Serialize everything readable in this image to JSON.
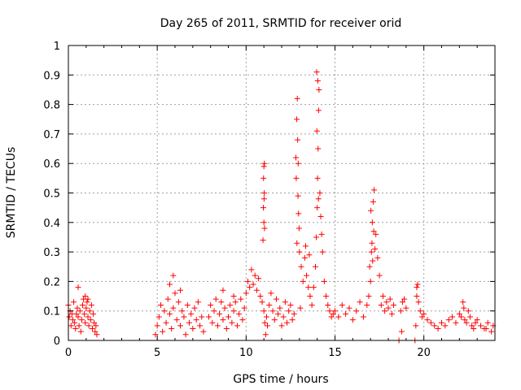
{
  "chart_data": {
    "type": "scatter",
    "title": "Day 265 of 2011, SRMTID for receiver orid",
    "xlabel": "GPS time / hours",
    "ylabel": "SRMTID / TECUs",
    "xlim": [
      0,
      24
    ],
    "ylim": [
      0,
      1
    ],
    "xticks": [
      0,
      5,
      10,
      15,
      20
    ],
    "yticks": [
      0,
      0.1,
      0.2,
      0.3,
      0.4,
      0.5,
      0.6,
      0.7,
      0.8,
      0.9,
      1
    ],
    "xtick_labels": [
      "0",
      "5",
      "10",
      "15",
      "20"
    ],
    "ytick_labels": [
      "0",
      "0.1",
      "0.2",
      "0.3",
      "0.4",
      "0.5",
      "0.6",
      "0.7",
      "0.8",
      "0.9",
      "1"
    ],
    "grid": true,
    "marker": "+",
    "color": "#ff0000",
    "series": [
      {
        "name": "SRMTID",
        "x": [
          0.0,
          0.05,
          0.1,
          0.15,
          0.2,
          0.25,
          0.3,
          0.35,
          0.4,
          0.45,
          0.5,
          0.55,
          0.6,
          0.65,
          0.7,
          0.75,
          0.8,
          0.85,
          0.9,
          0.95,
          1.0,
          1.05,
          1.1,
          1.15,
          1.2,
          1.25,
          1.3,
          1.35,
          1.4,
          1.45,
          1.5,
          1.55,
          1.6,
          0.55,
          0.95,
          1.1,
          4.9,
          5.0,
          5.1,
          5.2,
          5.3,
          5.4,
          5.5,
          5.6,
          5.7,
          5.8,
          5.9,
          6.0,
          6.1,
          6.2,
          6.3,
          6.4,
          6.5,
          6.6,
          6.7,
          6.8,
          6.9,
          7.0,
          7.1,
          7.2,
          7.3,
          7.4,
          7.5,
          7.6,
          5.9,
          5.7,
          6.3,
          7.9,
          8.0,
          8.1,
          8.2,
          8.3,
          8.4,
          8.5,
          8.6,
          8.7,
          8.8,
          8.9,
          9.0,
          9.1,
          9.2,
          9.3,
          9.4,
          9.5,
          9.6,
          9.7,
          9.8,
          9.9,
          8.7,
          9.3,
          10.0,
          10.1,
          10.2,
          10.3,
          10.4,
          10.5,
          10.6,
          10.7,
          10.8,
          10.9,
          11.0,
          11.05,
          11.1,
          11.15,
          11.2,
          11.3,
          11.4,
          11.5,
          11.6,
          11.7,
          11.8,
          11.9,
          12.0,
          12.1,
          12.2,
          12.3,
          12.4,
          12.5,
          12.6,
          12.7,
          10.95,
          11.0,
          11.02,
          10.98,
          11.03,
          11.01,
          10.97,
          11.04,
          11.0,
          12.8,
          12.82,
          12.85,
          12.88,
          12.9,
          12.92,
          12.95,
          12.98,
          13.0,
          13.1,
          13.2,
          13.3,
          13.4,
          13.5,
          13.6,
          13.7,
          13.8,
          13.9,
          13.95,
          14.0,
          14.02,
          14.05,
          14.08,
          14.1,
          14.15,
          14.2,
          14.25,
          14.3,
          14.4,
          14.5,
          14.6,
          14.7,
          14.8,
          14.9,
          13.98,
          14.03,
          13.97,
          14.07,
          13.35,
          13.55,
          13.05,
          12.86,
          12.93,
          15.0,
          15.2,
          15.4,
          15.6,
          15.8,
          16.0,
          16.2,
          16.4,
          16.6,
          16.8,
          16.9,
          17.0,
          17.05,
          17.1,
          17.15,
          17.2,
          17.3,
          17.4,
          17.5,
          17.6,
          17.7,
          17.8,
          17.9,
          18.0,
          18.1,
          18.2,
          18.3,
          16.95,
          17.02,
          17.08,
          17.12,
          17.18,
          17.25,
          18.6,
          18.7,
          18.8,
          18.9,
          19.0,
          19.5,
          19.55,
          19.6,
          19.65,
          19.7,
          19.8,
          19.9,
          20.0,
          20.2,
          20.4,
          20.6,
          20.8,
          21.0,
          21.2,
          21.4,
          21.6,
          21.8,
          22.0,
          22.1,
          22.2,
          22.3,
          22.4,
          22.5,
          22.6,
          22.7,
          22.8,
          22.9,
          23.0,
          23.2,
          23.4,
          23.6,
          23.8,
          23.9,
          18.75,
          19.6,
          22.25,
          23.5
        ],
        "y": [
          0.12,
          0.08,
          0.1,
          0.05,
          0.09,
          0.07,
          0.13,
          0.06,
          0.04,
          0.09,
          0.11,
          0.08,
          0.05,
          0.1,
          0.03,
          0.07,
          0.12,
          0.14,
          0.09,
          0.06,
          0.11,
          0.13,
          0.08,
          0.05,
          0.1,
          0.07,
          0.12,
          0.04,
          0.09,
          0.06,
          0.03,
          0.05,
          0.02,
          0.18,
          0.15,
          0.14,
          0.02,
          0.05,
          0.08,
          0.12,
          0.03,
          0.1,
          0.06,
          0.14,
          0.09,
          0.04,
          0.11,
          0.16,
          0.07,
          0.13,
          0.05,
          0.1,
          0.08,
          0.02,
          0.12,
          0.06,
          0.09,
          0.04,
          0.11,
          0.07,
          0.13,
          0.05,
          0.08,
          0.03,
          0.22,
          0.19,
          0.17,
          0.08,
          0.12,
          0.06,
          0.1,
          0.14,
          0.05,
          0.09,
          0.13,
          0.07,
          0.11,
          0.04,
          0.08,
          0.12,
          0.06,
          0.1,
          0.13,
          0.05,
          0.09,
          0.14,
          0.07,
          0.11,
          0.17,
          0.15,
          0.16,
          0.2,
          0.18,
          0.24,
          0.19,
          0.22,
          0.17,
          0.21,
          0.15,
          0.13,
          0.1,
          0.06,
          0.02,
          0.08,
          0.05,
          0.12,
          0.16,
          0.1,
          0.07,
          0.14,
          0.09,
          0.11,
          0.05,
          0.08,
          0.13,
          0.06,
          0.1,
          0.12,
          0.07,
          0.09,
          0.34,
          0.4,
          0.5,
          0.55,
          0.6,
          0.48,
          0.45,
          0.38,
          0.59,
          0.62,
          0.55,
          0.75,
          0.82,
          0.68,
          0.49,
          0.43,
          0.38,
          0.3,
          0.25,
          0.2,
          0.28,
          0.22,
          0.18,
          0.15,
          0.12,
          0.18,
          0.25,
          0.35,
          0.45,
          0.55,
          0.65,
          0.78,
          0.85,
          0.5,
          0.42,
          0.36,
          0.3,
          0.2,
          0.15,
          0.12,
          0.1,
          0.08,
          0.09,
          0.71,
          0.88,
          0.91,
          0.48,
          0.32,
          0.29,
          0.11,
          0.33,
          0.6,
          0.1,
          0.08,
          0.12,
          0.09,
          0.11,
          0.07,
          0.1,
          0.13,
          0.08,
          0.12,
          0.15,
          0.2,
          0.3,
          0.4,
          0.47,
          0.51,
          0.36,
          0.28,
          0.22,
          0.12,
          0.15,
          0.1,
          0.13,
          0.11,
          0.14,
          0.09,
          0.12,
          0.25,
          0.44,
          0.33,
          0.27,
          0.37,
          0.31,
          0.0,
          0.1,
          0.13,
          0.14,
          0.11,
          0.0,
          0.05,
          0.15,
          0.19,
          0.13,
          0.1,
          0.08,
          0.09,
          0.07,
          0.06,
          0.05,
          0.04,
          0.06,
          0.05,
          0.07,
          0.08,
          0.06,
          0.09,
          0.08,
          0.13,
          0.07,
          0.06,
          0.1,
          0.08,
          0.05,
          0.04,
          0.06,
          0.07,
          0.05,
          0.04,
          0.06,
          0.03,
          0.05,
          0.03,
          0.18,
          0.11,
          0.04
        ]
      }
    ]
  }
}
